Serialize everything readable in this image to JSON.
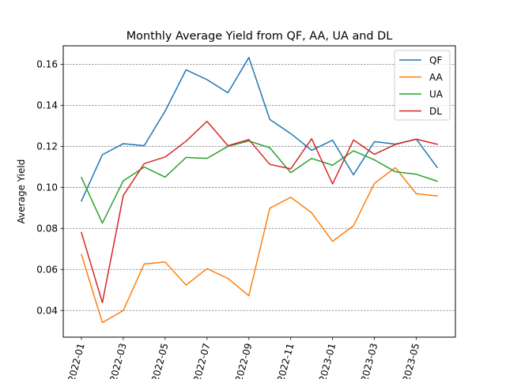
{
  "chart_data": {
    "type": "line",
    "title": "Monthly Average Yield from QF, AA, UA and DL",
    "xlabel": "",
    "ylabel": "Average Yield",
    "ylim": [
      0.027,
      0.169
    ],
    "yticks": [
      0.04,
      0.06,
      0.08,
      0.1,
      0.12,
      0.14,
      0.16
    ],
    "ytick_labels": [
      "0.04",
      "0.06",
      "0.08",
      "0.10",
      "0.12",
      "0.14",
      "0.16"
    ],
    "x": [
      "2022-01",
      "2022-02",
      "2022-03",
      "2022-04",
      "2022-05",
      "2022-06",
      "2022-07",
      "2022-08",
      "2022-09",
      "2022-10",
      "2022-11",
      "2022-12",
      "2023-01",
      "2023-02",
      "2023-03",
      "2023-04",
      "2023-05",
      "2023-06"
    ],
    "xticks": [
      "2022-01",
      "2022-03",
      "2022-05",
      "2022-07",
      "2022-09",
      "2022-11",
      "2023-01",
      "2023-03",
      "2023-05"
    ],
    "xtick_labels": [
      "2022-01",
      "2022-03",
      "2022-05",
      "2022-07",
      "2022-09",
      "2022-11",
      "2023-01",
      "2023-03",
      "2023-05"
    ],
    "grid": "horizontal dashed",
    "legend_position": "top-right",
    "series": [
      {
        "name": "QF",
        "color": "#1f77b4",
        "values": [
          0.0934,
          0.1159,
          0.1213,
          0.1203,
          0.1372,
          0.1573,
          0.1525,
          0.1461,
          0.1633,
          0.1331,
          0.1262,
          0.1181,
          0.123,
          0.1061,
          0.1223,
          0.1211,
          0.1235,
          0.1097
        ]
      },
      {
        "name": "AA",
        "color": "#ff7f0e",
        "values": [
          0.0673,
          0.0341,
          0.04,
          0.0627,
          0.0636,
          0.0524,
          0.0604,
          0.0556,
          0.0472,
          0.0898,
          0.0952,
          0.0876,
          0.0737,
          0.0813,
          0.102,
          0.1096,
          0.0969,
          0.0958
        ]
      },
      {
        "name": "UA",
        "color": "#2ca02c",
        "values": [
          0.1048,
          0.0826,
          0.1032,
          0.1099,
          0.105,
          0.1146,
          0.1141,
          0.12,
          0.1226,
          0.1193,
          0.1072,
          0.1141,
          0.1108,
          0.1178,
          0.1134,
          0.1076,
          0.1064,
          0.103
        ]
      },
      {
        "name": "DL",
        "color": "#d62728",
        "values": [
          0.078,
          0.0438,
          0.096,
          0.1116,
          0.1148,
          0.1225,
          0.1322,
          0.1203,
          0.1233,
          0.1112,
          0.109,
          0.1237,
          0.1017,
          0.1231,
          0.1161,
          0.1209,
          0.1235,
          0.121
        ]
      }
    ]
  }
}
